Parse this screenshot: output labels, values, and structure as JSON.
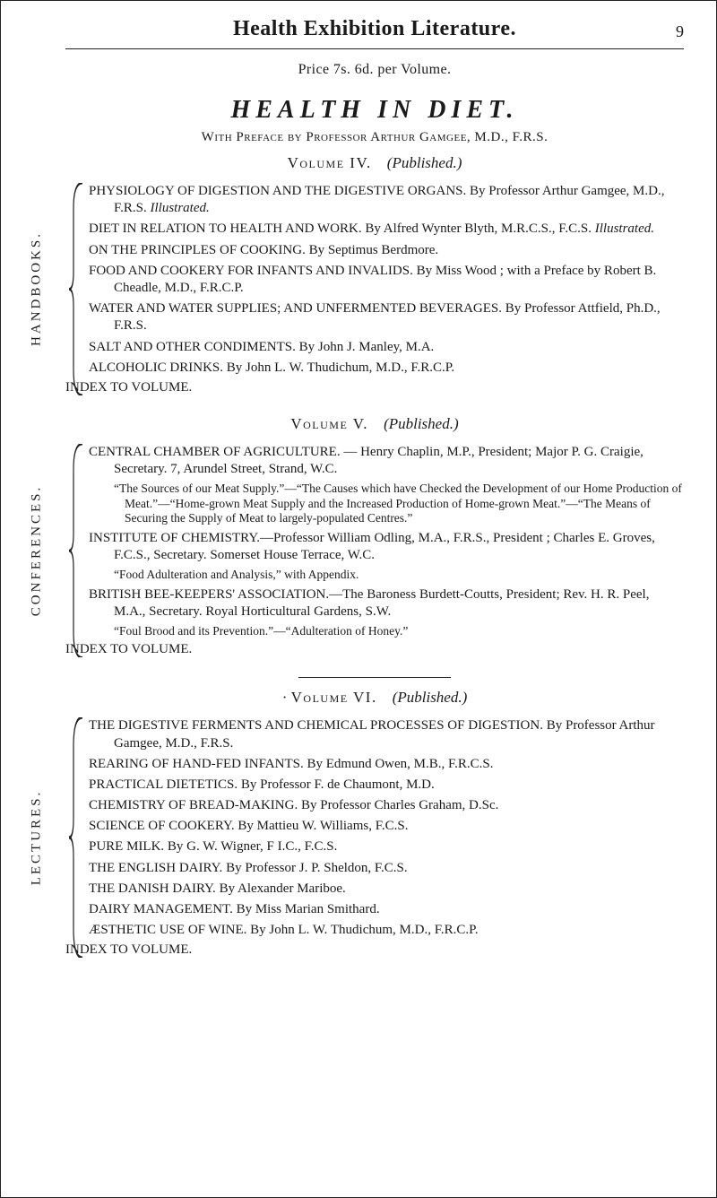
{
  "header": {
    "title": "Health Exhibition Literature.",
    "page_number": "9"
  },
  "price": "Price 7s. 6d. per Volume.",
  "health_in_diet": {
    "title": "HEALTH   IN   DIET.",
    "preface": "With Preface by Professor Arthur Gamgee, M.D., F.R.S.",
    "volume_line_sc": "Volume IV.",
    "volume_line_pub": "(Published.)",
    "side_label": "HANDBOOKS.",
    "entries": [
      {
        "lead": "PHYSIOLOGY OF DIGESTION AND THE DIGESTIVE ORGANS.",
        "rest": " By Professor Arthur Gamgee, M.D., F.R.S. ",
        "ital": "Illustrated."
      },
      {
        "lead": "DIET IN RELATION TO HEALTH AND WORK.",
        "rest": " By Alfred Wynter Blyth, M.R.C.S., F.C.S. ",
        "ital": "Illustrated."
      },
      {
        "lead": "ON THE PRINCIPLES OF COOKING.",
        "rest": " By Septimus Berdmore."
      },
      {
        "lead": "FOOD AND COOKERY FOR INFANTS AND INVALIDS.",
        "rest": " By Miss Wood ; with a Preface by Robert B. Cheadle, M.D., F.R.C.P."
      },
      {
        "lead": "WATER AND WATER SUPPLIES; AND UNFERMENTED BEVERAGES.",
        "rest": " By Professor Attfield, Ph.D., F.R.S."
      },
      {
        "lead": "SALT AND OTHER CONDIMENTS.",
        "rest": " By John J. Manley, M.A."
      },
      {
        "lead": "ALCOHOLIC DRINKS.",
        "rest": " By John L. W. Thudichum, M.D., F.R.C.P."
      }
    ],
    "index": "INDEX TO VOLUME."
  },
  "volume_v": {
    "volume_line_sc": "Volume V.",
    "volume_line_pub": "(Published.)",
    "side_label": "CONFERENCES.",
    "entries": [
      {
        "lead": "CENTRAL CHAMBER OF AGRICULTURE.",
        "rest": " — Henry Chaplin, M.P., President; Major P. G. Craigie, Secretary. 7, Arundel Street, Strand, W.C.",
        "sub": "“The Sources of our Meat Supply.”—“The Causes which have Checked the Development of our Home Production of Meat.”—“Home-grown Meat Supply and the Increased Production of Home-grown Meat.”—“The Means of Securing the Supply of Meat to largely-populated Centres.”"
      },
      {
        "lead": "INSTITUTE OF CHEMISTRY.",
        "rest": "—Professor William Odling, M.A., F.R.S., President ; Charles E. Groves, F.C.S., Secretary. Somerset House Terrace, W.C.",
        "sub": "“Food Adulteration and Analysis,” with Appendix."
      },
      {
        "lead": "BRITISH BEE-KEEPERS' ASSOCIATION.",
        "rest": "—The Baroness Burdett-Coutts, President; Rev. H. R. Peel, M.A., Secretary. Royal Horticultural Gardens, S.W.",
        "sub": "“Foul Brood and its Prevention.”—“Adulteration of Honey.”"
      }
    ],
    "index": "INDEX TO VOLUME."
  },
  "volume_vi": {
    "volume_line_sc": "Volume VI.",
    "volume_line_pub": "(Published.)",
    "side_label": "LECTURES.",
    "entries": [
      {
        "lead": "THE DIGESTIVE FERMENTS AND CHEMICAL PROCESSES OF DIGESTION.",
        "rest": " By Professor Arthur Gamgee, M.D., F.R.S."
      },
      {
        "lead": "REARING OF HAND-FED INFANTS.",
        "rest": " By Edmund Owen, M.B., F.R.C.S."
      },
      {
        "lead": "PRACTICAL DIETETICS.",
        "rest": " By Professor F. de Chaumont, M.D."
      },
      {
        "lead": "CHEMISTRY OF BREAD-MAKING.",
        "rest": " By Professor Charles Graham, D.Sc."
      },
      {
        "lead": "SCIENCE OF COOKERY.",
        "rest": " By Mattieu W. Williams, F.C.S."
      },
      {
        "lead": "PURE MILK.",
        "rest": " By G. W. Wigner, F I.C., F.C.S."
      },
      {
        "lead": "THE ENGLISH DAIRY.",
        "rest": " By Professor J. P. Sheldon, F.C.S."
      },
      {
        "lead": "THE DANISH DAIRY.",
        "rest": " By Alexander Mariboe."
      },
      {
        "lead": "DAIRY MANAGEMENT.",
        "rest": " By Miss Marian Smithard."
      },
      {
        "lead": "ÆSTHETIC USE OF WINE.",
        "rest": " By John L. W. Thudichum, M.D., F.R.C.P."
      }
    ],
    "index": "INDEX TO VOLUME."
  }
}
